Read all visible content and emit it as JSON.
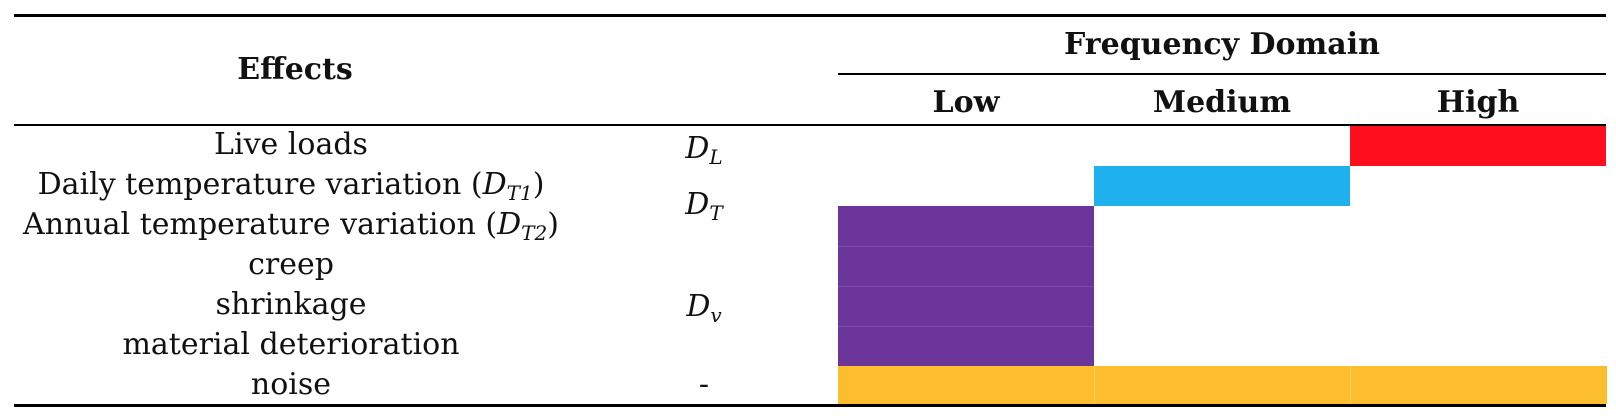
{
  "table": {
    "header": {
      "effects_label": "Effects",
      "frequency_domain_label": "Frequency Domain",
      "low_label": "Low",
      "medium_label": "Medium",
      "high_label": "High"
    },
    "rows": [
      {
        "effect": "Live loads",
        "symbol": "D",
        "symbol_sub": "L",
        "low": false,
        "medium": false,
        "high": true,
        "color": "#ff0e1e"
      },
      {
        "effect_text": "Daily temperature variation (",
        "effect_sym": "D",
        "effect_sub": "T1",
        "effect_close": ")",
        "low": false,
        "medium": true,
        "high": false,
        "color": "#1fb1ee"
      },
      {
        "effect_text": "Annual temperature variation (",
        "effect_sym": "D",
        "effect_sub": "T2",
        "effect_close": ")",
        "low": true,
        "medium": false,
        "high": false,
        "color": "#6c359c"
      },
      {
        "effect": "creep",
        "low": true,
        "medium": false,
        "high": false,
        "color": "#6c359c"
      },
      {
        "effect": "shrinkage",
        "low": true,
        "medium": false,
        "high": false,
        "color": "#6c359c"
      },
      {
        "effect": "material deterioration",
        "low": true,
        "medium": false,
        "high": false,
        "color": "#6c359c"
      },
      {
        "effect": "noise",
        "symbol_plain": "-",
        "low": true,
        "medium": true,
        "high": true,
        "color": "#fcbe2e"
      }
    ],
    "group_symbols": [
      {
        "symbol": "D",
        "sub": "T"
      },
      {
        "symbol": "D",
        "sub": "v"
      }
    ]
  }
}
